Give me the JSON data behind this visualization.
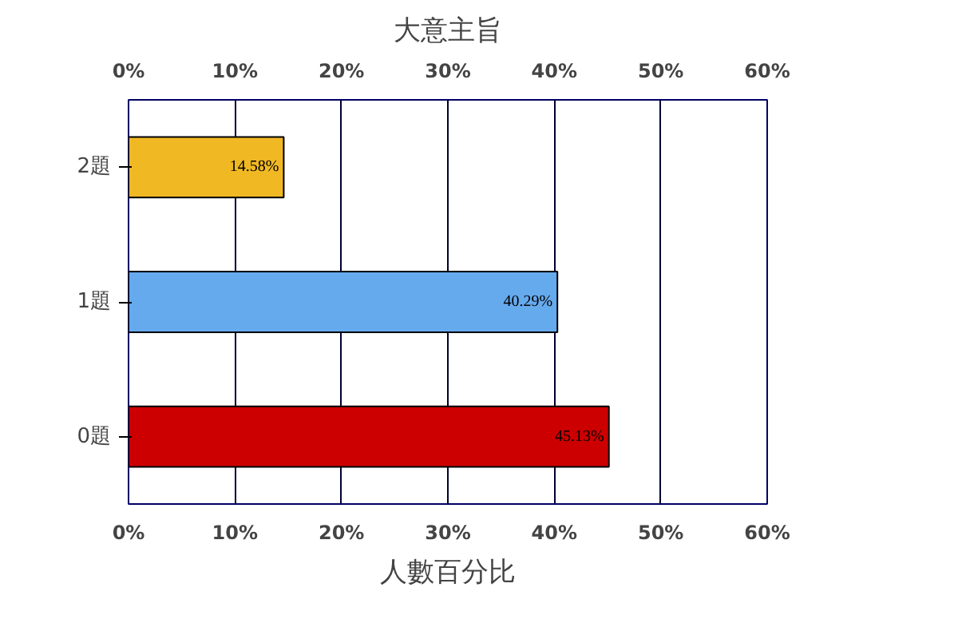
{
  "chart_data": {
    "type": "bar",
    "orientation": "horizontal",
    "title": "大意主旨",
    "xlabel": "人數百分比",
    "categories": [
      "2題",
      "1題",
      "0題"
    ],
    "values": [
      14.58,
      40.29,
      45.13
    ],
    "colors": [
      "#f0b823",
      "#66aaee",
      "#cc0000"
    ],
    "value_labels": [
      "14.58%",
      "40.29%",
      "45.13%"
    ],
    "xlim": [
      0,
      60
    ],
    "xticks": [
      {
        "value": 0,
        "label": "0%"
      },
      {
        "value": 10,
        "label": "10%"
      },
      {
        "value": 20,
        "label": "20%"
      },
      {
        "value": 30,
        "label": "30%"
      },
      {
        "value": 40,
        "label": "40%"
      },
      {
        "value": 50,
        "label": "50%"
      },
      {
        "value": 60,
        "label": "60%"
      }
    ],
    "x2lim": [
      0,
      60
    ],
    "x2ticks": [
      {
        "value": 0,
        "label": "0%"
      },
      {
        "value": 10,
        "label": "10%"
      },
      {
        "value": 20,
        "label": "20%"
      },
      {
        "value": 30,
        "label": "30%"
      },
      {
        "value": 40,
        "label": "40%"
      },
      {
        "value": 50,
        "label": "50%"
      },
      {
        "value": 60,
        "label": "60%"
      }
    ],
    "grid": "x"
  }
}
